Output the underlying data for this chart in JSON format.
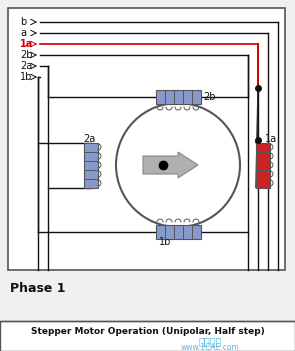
{
  "bg_color": "#f0f0f0",
  "title": "Stepper Motor Operation (Unipolar, Half step)",
  "phase_label": "Phase 1",
  "watermark1": "仿真在线",
  "watermark2": "www.1CAE.com",
  "coil_blue": "#8899cc",
  "coil_red": "#cc2222",
  "wire_black": "#111111",
  "wire_red": "#cc0000",
  "pin_labels": [
    "b",
    "a",
    "1a",
    "2b",
    "2a",
    "1b"
  ]
}
